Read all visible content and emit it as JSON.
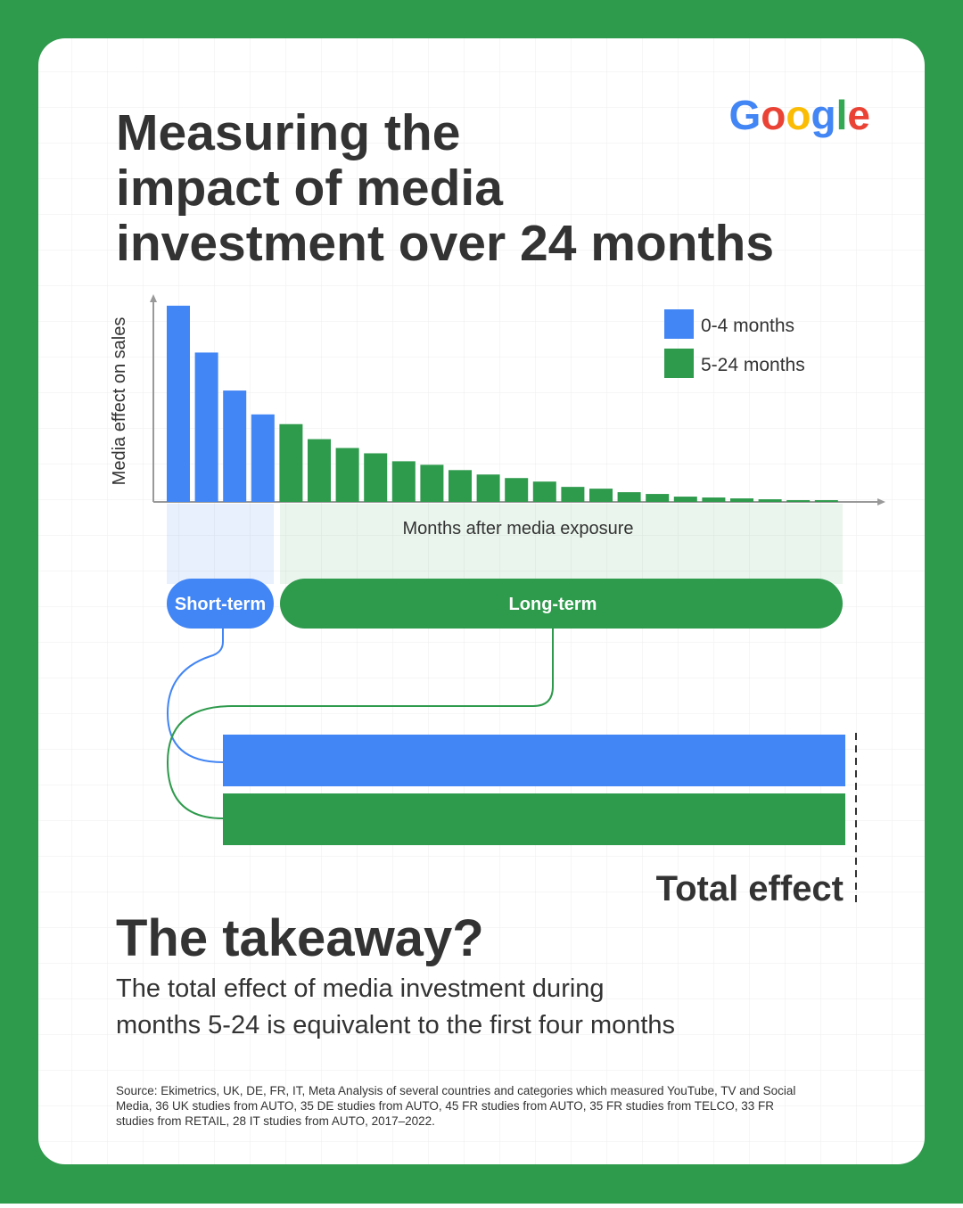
{
  "chart_data": [
    {
      "type": "bar",
      "title": "Measuring the impact of media investment over 24 months",
      "ylabel": "Media effect on sales",
      "xlabel": "Months after media exposure",
      "categories": [
        null,
        null,
        null,
        null,
        null,
        null,
        null,
        null,
        null,
        null,
        null,
        null,
        null,
        null,
        null,
        null,
        null,
        null,
        null,
        null,
        null,
        null,
        null,
        null
      ],
      "series": [
        {
          "name": "0-4 months",
          "color": "#4285f4",
          "values": [
            222,
            169,
            126,
            99,
            null,
            null,
            null,
            null,
            null,
            null,
            null,
            null,
            null,
            null,
            null,
            null,
            null,
            null,
            null,
            null,
            null,
            null,
            null,
            null
          ]
        },
        {
          "name": "5-24 months",
          "color": "#2e9a4c",
          "values": [
            null,
            null,
            null,
            null,
            88,
            71,
            61,
            55,
            46,
            42,
            36,
            31,
            27,
            23,
            17,
            15,
            11,
            9,
            6,
            5,
            4,
            3,
            2,
            2
          ]
        }
      ],
      "ylim": [
        0,
        235
      ],
      "legend": "top-right",
      "annotations": [
        "Short-term",
        "Long-term"
      ]
    },
    {
      "type": "barh",
      "label": "Total effect",
      "values": [
        100,
        100
      ],
      "colors": [
        "#4285f4",
        "#2e9a4c"
      ],
      "xlim": [
        0,
        100
      ]
    }
  ],
  "logo": "Google",
  "logo_colors": [
    "#4285f4",
    "#ea4335",
    "#fbbc05",
    "#4285f4",
    "#34a853",
    "#ea4335"
  ],
  "takeaway": {
    "heading": "The takeaway?",
    "lines": [
      "The total effect of media investment during",
      "months 5-24 is equivalent to the first four months"
    ]
  },
  "source": [
    "Source: Ekimetrics, UK, DE, FR, IT, Meta Analysis of several countries and categories which measured YouTube, TV and Social",
    "Media, 36 UK studies from AUTO, 35 DE studies from AUTO, 45 FR studies from AUTO, 35 FR studies from TELCO, 33 FR",
    "studies from RETAIL, 28 IT studies from AUTO, 2017–2022."
  ]
}
